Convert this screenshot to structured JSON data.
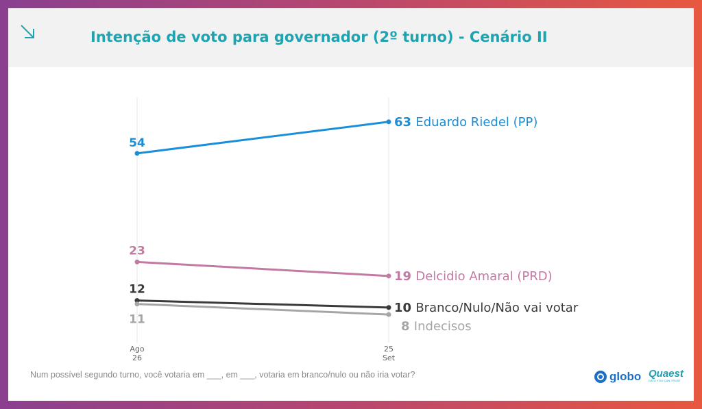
{
  "header": {
    "title": "Intenção de voto para governador (2º turno) - Cenário II",
    "icon": "arrow-down-right-icon"
  },
  "chart_data": {
    "type": "line",
    "title": "Intenção de voto para governador (2º turno) - Cenário II",
    "categories": [
      "Ago 26",
      "25 Set"
    ],
    "x_ticks": [
      {
        "top": "Ago",
        "bottom": "26"
      },
      {
        "top": "25",
        "bottom": "Set"
      }
    ],
    "ylim": [
      0,
      70
    ],
    "grid": false,
    "series": [
      {
        "name": "Eduardo Riedel (PP)",
        "values": [
          54,
          63
        ],
        "color": "#1a8fd8",
        "start_label": "54",
        "end_label": "63"
      },
      {
        "name": "Delcidio Amaral (PRD)",
        "values": [
          23,
          19
        ],
        "color": "#c27aa3",
        "start_label": "23",
        "end_label": "19"
      },
      {
        "name": "Branco/Nulo/Não vai votar",
        "values": [
          12,
          10
        ],
        "color": "#3a3a3a",
        "start_label": "12",
        "end_label": "10"
      },
      {
        "name": "Indecisos",
        "values": [
          11,
          8
        ],
        "color": "#a6a6a6",
        "start_label": "11",
        "end_label": "8"
      }
    ]
  },
  "footnote": "Num possível segundo turno, você votaria em ___, em ___, votaria em branco/nulo ou não iria votar?",
  "logos": {
    "globo": "globo",
    "quaest_name": "Quaest",
    "quaest_tagline": "DATA YOU CAN TRUST"
  }
}
